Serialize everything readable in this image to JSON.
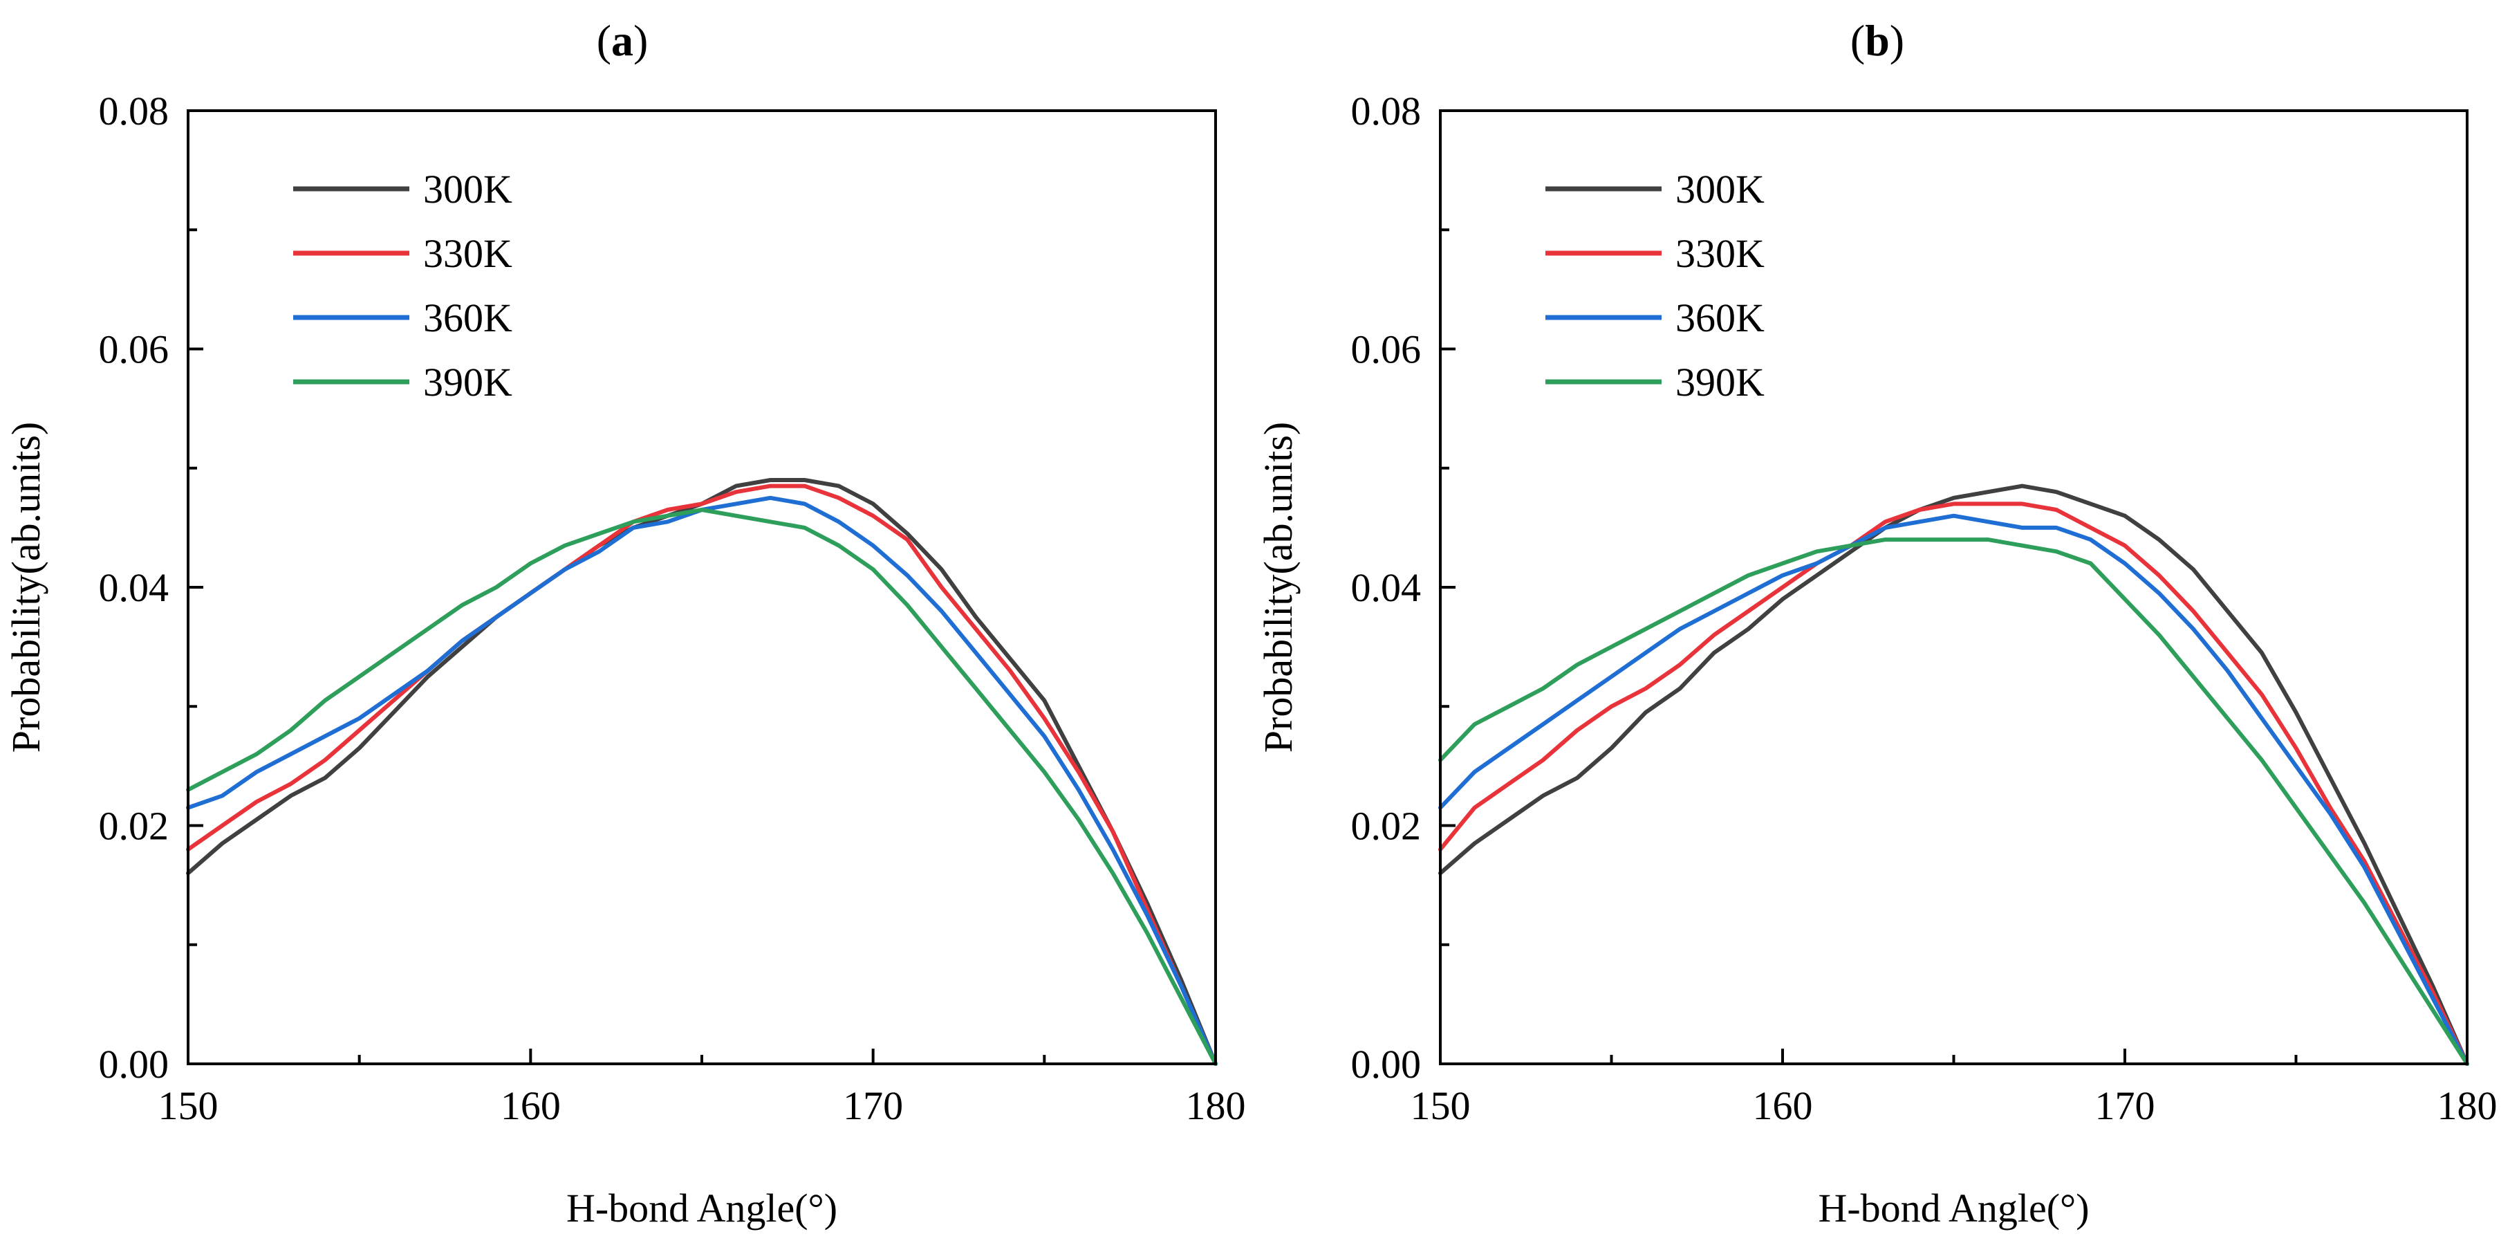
{
  "chart_data": [
    {
      "panel": "a",
      "type": "line",
      "xlabel": "H-bond Angle(°)",
      "ylabel": "Probability(ab.units)",
      "xlim": [
        150,
        180
      ],
      "ylim": [
        0,
        0.08
      ],
      "xticks": [
        "150",
        "160",
        "170",
        "180"
      ],
      "yticks": [
        "0.00",
        "0.02",
        "0.04",
        "0.06",
        "0.08"
      ],
      "legend_position": "top-left",
      "series": [
        {
          "name": "300K",
          "color": "#404040",
          "x": [
            150,
            151,
            152,
            153,
            154,
            155,
            156,
            157,
            158,
            159,
            160,
            161,
            162,
            163,
            164,
            165,
            166,
            167,
            168,
            169,
            170,
            171,
            172,
            173,
            174,
            175,
            176,
            177,
            178,
            179,
            180
          ],
          "y": [
            0.016,
            0.0185,
            0.0205,
            0.0225,
            0.024,
            0.0265,
            0.0295,
            0.0325,
            0.035,
            0.0375,
            0.0395,
            0.0415,
            0.0435,
            0.045,
            0.046,
            0.047,
            0.0485,
            0.049,
            0.049,
            0.0485,
            0.047,
            0.0445,
            0.0415,
            0.0375,
            0.034,
            0.0305,
            0.025,
            0.0195,
            0.0135,
            0.007,
            0.0
          ]
        },
        {
          "name": "330K",
          "color": "#e8333a",
          "x": [
            150,
            151,
            152,
            153,
            154,
            155,
            156,
            157,
            158,
            159,
            160,
            161,
            162,
            163,
            164,
            165,
            166,
            167,
            168,
            169,
            170,
            171,
            172,
            173,
            174,
            175,
            176,
            177,
            178,
            179,
            180
          ],
          "y": [
            0.018,
            0.02,
            0.022,
            0.0235,
            0.0255,
            0.028,
            0.0305,
            0.033,
            0.0355,
            0.0375,
            0.0395,
            0.0415,
            0.0435,
            0.0455,
            0.0465,
            0.047,
            0.048,
            0.0485,
            0.0485,
            0.0475,
            0.046,
            0.044,
            0.04,
            0.0365,
            0.033,
            0.029,
            0.0245,
            0.0195,
            0.013,
            0.0065,
            0.0
          ]
        },
        {
          "name": "360K",
          "color": "#1f6ed4",
          "x": [
            150,
            151,
            152,
            153,
            154,
            155,
            156,
            157,
            158,
            159,
            160,
            161,
            162,
            163,
            164,
            165,
            166,
            167,
            168,
            169,
            170,
            171,
            172,
            173,
            174,
            175,
            176,
            177,
            178,
            179,
            180
          ],
          "y": [
            0.0215,
            0.0225,
            0.0245,
            0.026,
            0.0275,
            0.029,
            0.031,
            0.033,
            0.0355,
            0.0375,
            0.0395,
            0.0415,
            0.043,
            0.045,
            0.0455,
            0.0465,
            0.047,
            0.0475,
            0.047,
            0.0455,
            0.0435,
            0.041,
            0.038,
            0.0345,
            0.031,
            0.0275,
            0.023,
            0.018,
            0.0125,
            0.0065,
            0.0
          ]
        },
        {
          "name": "390K",
          "color": "#2e9e5b",
          "x": [
            150,
            151,
            152,
            153,
            154,
            155,
            156,
            157,
            158,
            159,
            160,
            161,
            162,
            163,
            164,
            165,
            166,
            167,
            168,
            169,
            170,
            171,
            172,
            173,
            174,
            175,
            176,
            177,
            178,
            179,
            180
          ],
          "y": [
            0.023,
            0.0245,
            0.026,
            0.028,
            0.0305,
            0.0325,
            0.0345,
            0.0365,
            0.0385,
            0.04,
            0.042,
            0.0435,
            0.0445,
            0.0455,
            0.046,
            0.0465,
            0.046,
            0.0455,
            0.045,
            0.0435,
            0.0415,
            0.0385,
            0.035,
            0.0315,
            0.028,
            0.0245,
            0.0205,
            0.016,
            0.011,
            0.0055,
            0.0
          ]
        }
      ]
    },
    {
      "panel": "b",
      "type": "line",
      "xlabel": "H-bond Angle(°)",
      "ylabel": "Probability(ab.units)",
      "xlim": [
        150,
        180
      ],
      "ylim": [
        0,
        0.08
      ],
      "xticks": [
        "150",
        "160",
        "170",
        "180"
      ],
      "yticks": [
        "0.00",
        "0.02",
        "0.04",
        "0.06",
        "0.08"
      ],
      "legend_position": "top-left",
      "series": [
        {
          "name": "300K",
          "color": "#404040",
          "x": [
            150,
            151,
            152,
            153,
            154,
            155,
            156,
            157,
            158,
            159,
            160,
            161,
            162,
            163,
            164,
            165,
            166,
            167,
            168,
            169,
            170,
            171,
            172,
            173,
            174,
            175,
            176,
            177,
            178,
            179,
            180
          ],
          "y": [
            0.016,
            0.0185,
            0.0205,
            0.0225,
            0.024,
            0.0265,
            0.0295,
            0.0315,
            0.0345,
            0.0365,
            0.039,
            0.041,
            0.043,
            0.045,
            0.0465,
            0.0475,
            0.048,
            0.0485,
            0.048,
            0.047,
            0.046,
            0.044,
            0.0415,
            0.038,
            0.0345,
            0.0295,
            0.024,
            0.0185,
            0.0125,
            0.0065,
            0.0
          ]
        },
        {
          "name": "330K",
          "color": "#e8333a",
          "x": [
            150,
            151,
            152,
            153,
            154,
            155,
            156,
            157,
            158,
            159,
            160,
            161,
            162,
            163,
            164,
            165,
            166,
            167,
            168,
            169,
            170,
            171,
            172,
            173,
            174,
            175,
            176,
            177,
            178,
            179,
            180
          ],
          "y": [
            0.018,
            0.0215,
            0.0235,
            0.0255,
            0.028,
            0.03,
            0.0315,
            0.0335,
            0.036,
            0.038,
            0.04,
            0.042,
            0.0435,
            0.0455,
            0.0465,
            0.047,
            0.047,
            0.047,
            0.0465,
            0.045,
            0.0435,
            0.041,
            0.038,
            0.0345,
            0.031,
            0.0265,
            0.0215,
            0.017,
            0.0115,
            0.006,
            0.0
          ]
        },
        {
          "name": "360K",
          "color": "#1f6ed4",
          "x": [
            150,
            151,
            152,
            153,
            154,
            155,
            156,
            157,
            158,
            159,
            160,
            161,
            162,
            163,
            164,
            165,
            166,
            167,
            168,
            169,
            170,
            171,
            172,
            173,
            174,
            175,
            176,
            177,
            178,
            179,
            180
          ],
          "y": [
            0.0215,
            0.0245,
            0.0265,
            0.0285,
            0.0305,
            0.0325,
            0.0345,
            0.0365,
            0.038,
            0.0395,
            0.041,
            0.042,
            0.0435,
            0.045,
            0.0455,
            0.046,
            0.0455,
            0.045,
            0.045,
            0.044,
            0.042,
            0.0395,
            0.0365,
            0.033,
            0.029,
            0.025,
            0.021,
            0.0165,
            0.011,
            0.0055,
            0.0
          ]
        },
        {
          "name": "390K",
          "color": "#2e9e5b",
          "x": [
            150,
            151,
            152,
            153,
            154,
            155,
            156,
            157,
            158,
            159,
            160,
            161,
            162,
            163,
            164,
            165,
            166,
            167,
            168,
            169,
            170,
            171,
            172,
            173,
            174,
            175,
            176,
            177,
            178,
            179,
            180
          ],
          "y": [
            0.0255,
            0.0285,
            0.03,
            0.0315,
            0.0335,
            0.035,
            0.0365,
            0.038,
            0.0395,
            0.041,
            0.042,
            0.043,
            0.0435,
            0.044,
            0.044,
            0.044,
            0.044,
            0.0435,
            0.043,
            0.042,
            0.039,
            0.036,
            0.0325,
            0.029,
            0.0255,
            0.0215,
            0.0175,
            0.0135,
            0.009,
            0.0045,
            0.0
          ]
        }
      ]
    }
  ]
}
